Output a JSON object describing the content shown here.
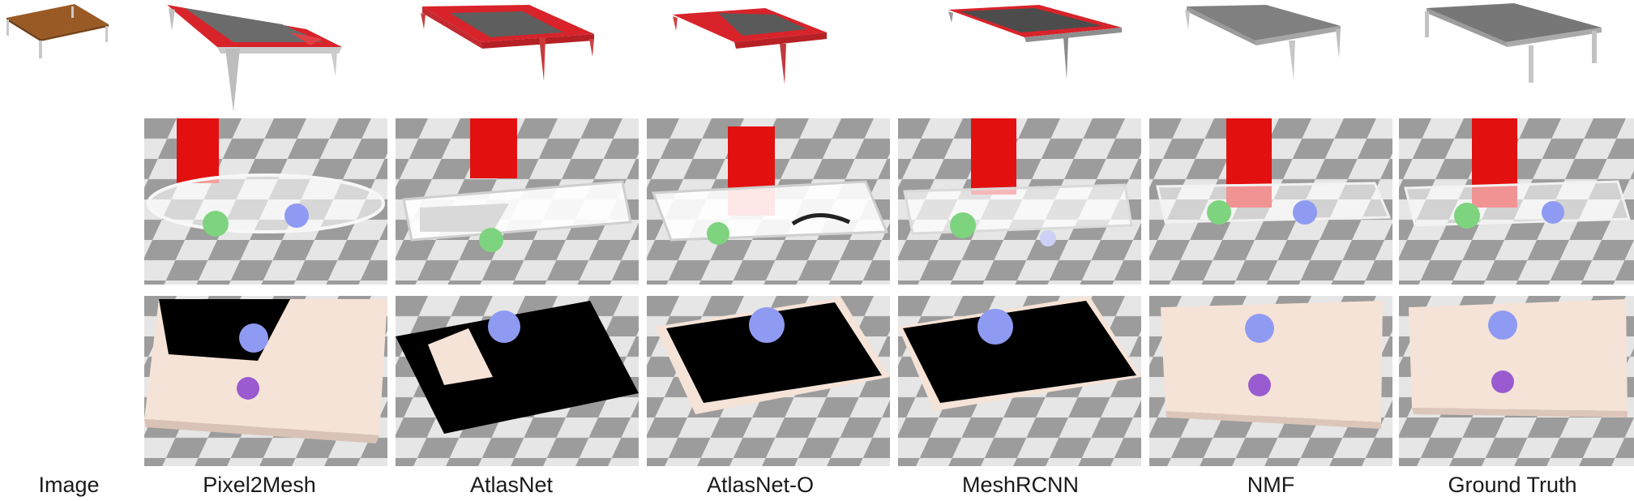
{
  "columns": [
    {
      "label": "Image"
    },
    {
      "label": "Pixel2Mesh"
    },
    {
      "label": "AtlasNet"
    },
    {
      "label": "AtlasNet-O"
    },
    {
      "label": "MeshRCNN"
    },
    {
      "label": "NMF"
    },
    {
      "label": "Ground Truth"
    }
  ],
  "colors": {
    "error_red": "#d8232a",
    "mesh_gray": "#6b6b6b",
    "wood": "#9a5a25",
    "checker_dark": "#9c9c9c",
    "checker_light": "#e6e6e6",
    "box_red": "#e31010",
    "sphere_green": "#7ed37e",
    "sphere_blue": "#8f9bf2",
    "sphere_purple": "#9a5bd0",
    "skin": "#f6e3d7"
  }
}
